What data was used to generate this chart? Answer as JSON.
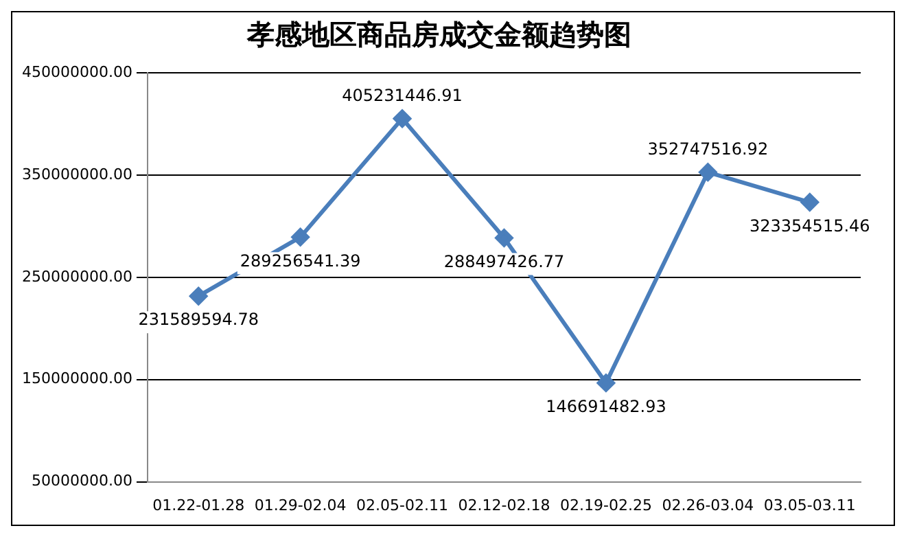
{
  "chart_data": {
    "type": "line",
    "title": "孝感地区商品房成交金额趋势图",
    "categories": [
      "01.22-01.28",
      "01.29-02.04",
      "02.05-02.11",
      "02.12-02.18",
      "02.19-02.25",
      "02.26-03.04",
      "03.05-03.11"
    ],
    "series": [
      {
        "color": "#4a7ebb",
        "values": [
          231589594.78,
          289256541.39,
          405231446.91,
          288497426.77,
          146691482.93,
          352747516.92,
          323354515.46
        ]
      }
    ],
    "ylim": [
      50000000,
      450000000
    ],
    "yticks": [
      {
        "value": 50000000,
        "label": "50000000.00"
      },
      {
        "value": 150000000,
        "label": "150000000.00"
      },
      {
        "value": 250000000,
        "label": "250000000.00"
      },
      {
        "value": 350000000,
        "label": "350000000.00"
      },
      {
        "value": 450000000,
        "label": "450000000.00"
      }
    ],
    "grid": "y",
    "legend": false,
    "marker": "diamond",
    "line_style": "solid",
    "data_labels": true
  }
}
